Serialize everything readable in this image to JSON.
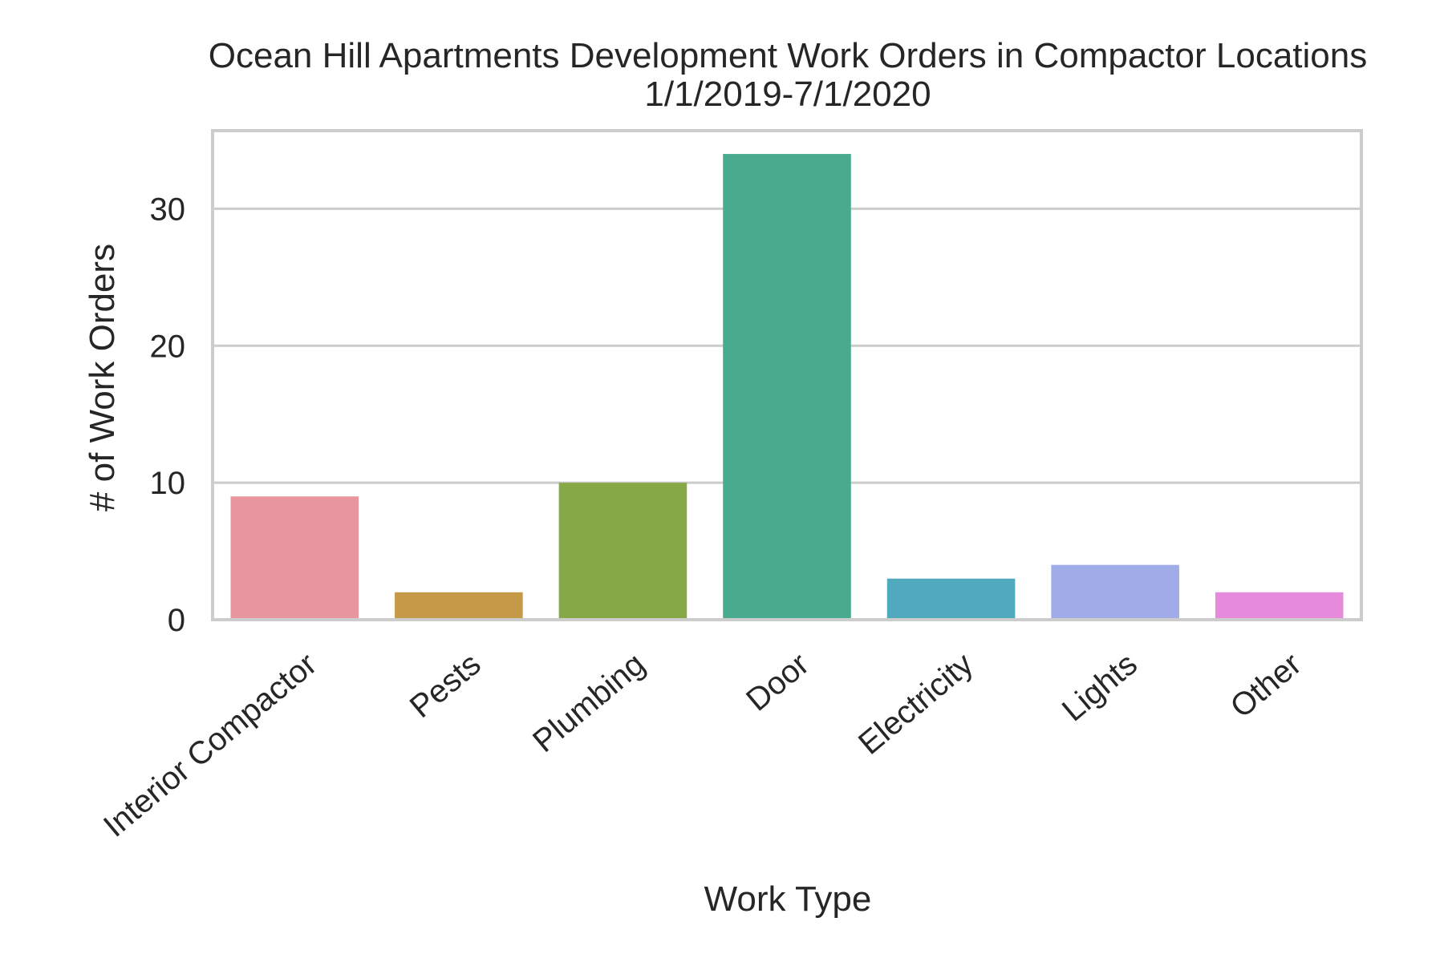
{
  "chart_data": {
    "type": "bar",
    "title": "Ocean Hill Apartments Development Work Orders in Compactor Locations",
    "subtitle": "1/1/2019-7/1/2020",
    "xlabel": "Work Type",
    "ylabel": "# of Work Orders",
    "categories": [
      "Interior Compactor",
      "Pests",
      "Plumbing",
      "Door",
      "Electricity",
      "Lights",
      "Other"
    ],
    "values": [
      9,
      2,
      10,
      34,
      3,
      4,
      2
    ],
    "colors": [
      "#e8959f",
      "#c49a49",
      "#87a847",
      "#49ab8d",
      "#50aabd",
      "#a0ace8",
      "#e68adc"
    ],
    "ylim": [
      0,
      35.7
    ],
    "yticks": [
      0,
      10,
      20,
      30
    ],
    "grid": true,
    "style": {
      "grid_color": "#cccccc",
      "frame_color": "#cccccc",
      "text_color": "#262626"
    }
  }
}
